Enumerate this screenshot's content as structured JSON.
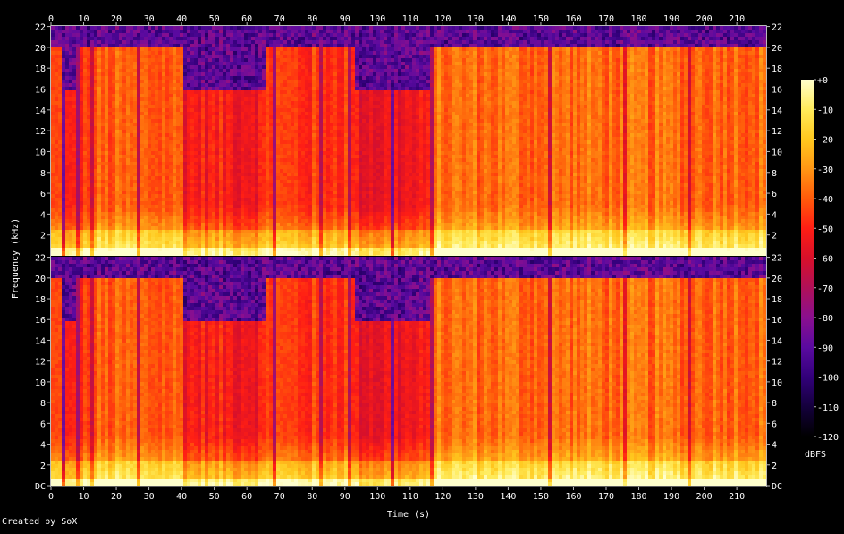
{
  "credit": "Created by SoX",
  "chart_data": {
    "type": "heatmap",
    "subtype": "spectrogram",
    "channels": 2,
    "xlabel": "Time (s)",
    "ylabel": "Frequency (kHz)",
    "colorbar_label": "dBFS",
    "x_range": [
      0,
      219
    ],
    "y_range_khz": [
      0,
      22.05
    ],
    "x_ticks": [
      0,
      10,
      20,
      30,
      40,
      50,
      60,
      70,
      80,
      90,
      100,
      110,
      120,
      130,
      140,
      150,
      160,
      170,
      180,
      190,
      200,
      210
    ],
    "x_tick_labels": [
      "0",
      "10",
      "20",
      "30",
      "40",
      "50",
      "60",
      "70",
      "80",
      "90",
      "100",
      "110",
      "120",
      "130",
      "140",
      "150",
      "160",
      "170",
      "180",
      "190",
      "200",
      "210"
    ],
    "y_ticks_khz": [
      0,
      2,
      4,
      6,
      8,
      10,
      12,
      14,
      16,
      18,
      20,
      22
    ],
    "y_tick_labels_top": [
      "22",
      "20",
      "18",
      "16",
      "14",
      "12",
      "10",
      "8",
      "6",
      "4",
      "2"
    ],
    "y_tick_labels_bottom": [
      "22",
      "20",
      "18",
      "16",
      "14",
      "12",
      "10",
      "8",
      "6",
      "4",
      "2",
      "DC"
    ],
    "colorbar_range_db": [
      -120,
      0
    ],
    "colorbar_ticks_db": [
      0,
      -10,
      -20,
      -30,
      -40,
      -50,
      -60,
      -70,
      -80,
      -90,
      -100,
      -110,
      -120
    ],
    "colorbar_tick_labels": [
      "+0",
      "-10",
      "-20",
      "-30",
      "-40",
      "-50",
      "-60",
      "-70",
      "-80",
      "-90",
      "-100",
      "-110",
      "-120"
    ],
    "colormap": [
      "#000000",
      "#14003c",
      "#32007a",
      "#5a0aa0",
      "#8a0f8f",
      "#b01058",
      "#d8102a",
      "#ff1e14",
      "#ff5a0a",
      "#ff9614",
      "#ffc81e",
      "#ffeb5a",
      "#ffffcc"
    ],
    "segments": [
      {
        "t0": 0,
        "t1": 3,
        "cutoff_khz": 20.0,
        "level": 0.62
      },
      {
        "t0": 3,
        "t1": 7,
        "cutoff_khz": 16.0,
        "level": 0.55
      },
      {
        "t0": 7,
        "t1": 10,
        "cutoff_khz": 20.0,
        "level": 0.6
      },
      {
        "t0": 10,
        "t1": 40,
        "cutoff_khz": 20.0,
        "level": 0.66
      },
      {
        "t0": 40,
        "t1": 65,
        "cutoff_khz": 16.0,
        "level": 0.57
      },
      {
        "t0": 65,
        "t1": 69,
        "cutoff_khz": 20.0,
        "level": 0.63
      },
      {
        "t0": 69,
        "t1": 82,
        "cutoff_khz": 20.0,
        "level": 0.61
      },
      {
        "t0": 82,
        "t1": 92,
        "cutoff_khz": 20.0,
        "level": 0.62
      },
      {
        "t0": 92,
        "t1": 116,
        "cutoff_khz": 16.0,
        "level": 0.54
      },
      {
        "t0": 116,
        "t1": 219,
        "cutoff_khz": 20.2,
        "level": 0.69
      }
    ],
    "dark_gaps_s": [
      3.5,
      7.5,
      12,
      26,
      40,
      63,
      68,
      82,
      91,
      104,
      116,
      152,
      168,
      175,
      195,
      213
    ]
  }
}
